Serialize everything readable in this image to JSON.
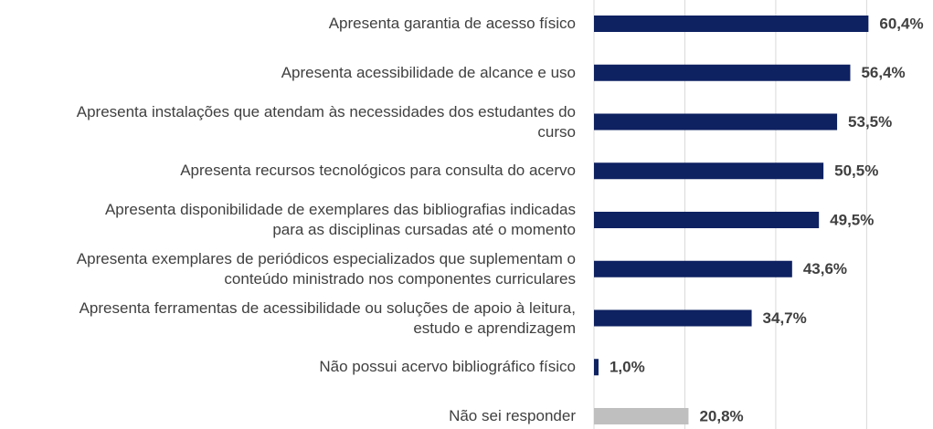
{
  "chart_data": {
    "type": "barh",
    "categories": [
      "Apresenta garantia de acesso físico",
      "Apresenta acessibilidade de alcance e uso",
      "Apresenta instalações que atendam às necessidades dos estudantes do\ncurso",
      "Apresenta recursos tecnológicos para consulta do acervo",
      "Apresenta disponibilidade de exemplares das bibliografias indicadas\npara as disciplinas cursadas até o momento",
      "Apresenta exemplares de periódicos especializados que suplementam o\nconteúdo ministrado nos componentes curriculares",
      "Apresenta ferramentas de acessibilidade ou soluções de apoio à leitura,\nestudo e aprendizagem",
      "Não possui acervo bibliográfico físico",
      "Não sei responder"
    ],
    "values": [
      60.4,
      56.4,
      53.5,
      50.5,
      49.5,
      43.6,
      34.7,
      1.0,
      20.8
    ],
    "value_labels": [
      "60,4%",
      "56,4%",
      "53,5%",
      "50,5%",
      "49,5%",
      "43,6%",
      "34,7%",
      "1,0%",
      "20,8%"
    ],
    "colors": [
      "#0e2161",
      "#0e2161",
      "#0e2161",
      "#0e2161",
      "#0e2161",
      "#0e2161",
      "#0e2161",
      "#0e2161",
      "#bfbfbf"
    ],
    "xlim": [
      0,
      74
    ],
    "xticks": [
      0,
      20,
      40,
      60
    ],
    "grid": true
  }
}
